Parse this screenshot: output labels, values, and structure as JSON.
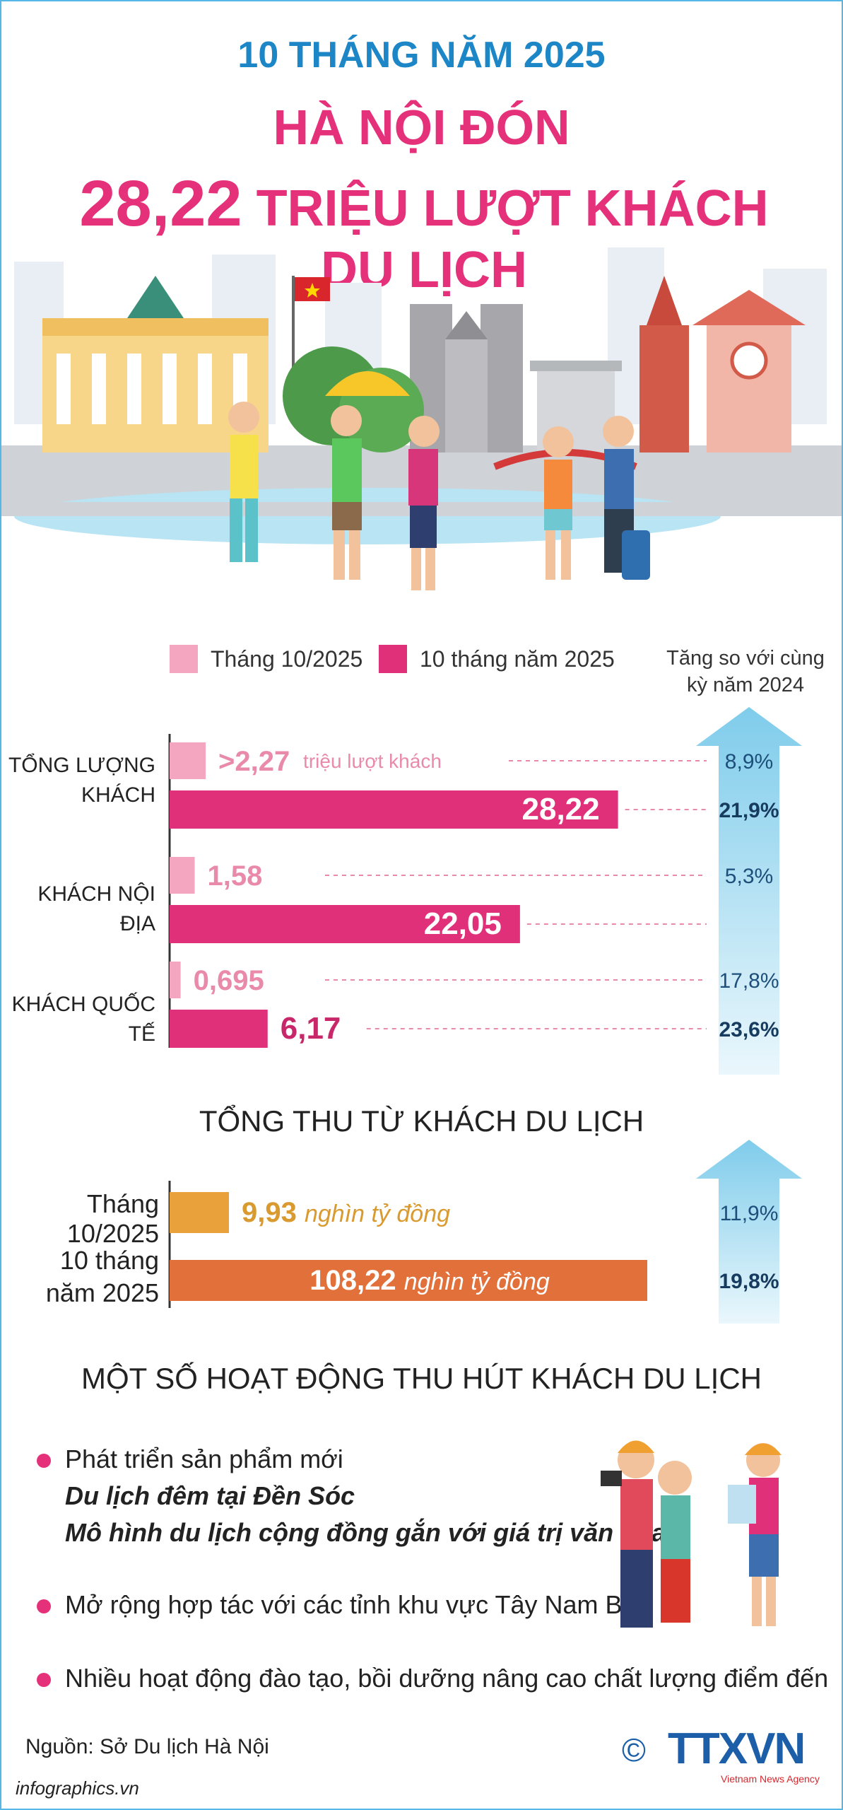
{
  "header": {
    "line1": "10 THÁNG NĂM 2025",
    "line2": "HÀ NỘI ĐÓN",
    "line3_number": "28,22",
    "line3_text": "TRIỆU LƯỢT KHÁCH DU LỊCH"
  },
  "colors": {
    "pink_light": "#f4a6c1",
    "pink_dark": "#e0307a",
    "orange_light": "#e9a23b",
    "orange_dark": "#e2703a",
    "blue_title": "#1c86c6",
    "arrow_blue": "#8fd3ee"
  },
  "visitors_chart": {
    "legend": [
      "Tháng 10/2025",
      "10 tháng năm 2025"
    ],
    "growth_header": "Tăng so với cùng kỳ năm 2024"
  },
  "chart_data": [
    {
      "type": "bar",
      "orientation": "horizontal",
      "categories": [
        "TỔNG LƯỢNG KHÁCH",
        "KHÁCH NỘI ĐỊA",
        "KHÁCH QUỐC TẾ"
      ],
      "series": [
        {
          "name": "Tháng 10/2025",
          "values": [
            2.27,
            1.58,
            0.695
          ],
          "labels": [
            ">2,27",
            "1,58",
            "0,695"
          ],
          "growth": [
            "8,9%",
            "5,3%",
            "17,8%"
          ]
        },
        {
          "name": "10 tháng năm 2025",
          "values": [
            28.22,
            22.05,
            6.17
          ],
          "labels": [
            "28,22",
            "22,05",
            "6,17"
          ],
          "growth": [
            "21,9%",
            "",
            "23,6%"
          ]
        }
      ],
      "unit_note": "triệu lượt khách",
      "xlim": [
        0,
        30
      ]
    },
    {
      "type": "bar",
      "orientation": "horizontal",
      "title": "TỔNG THU TỪ KHÁCH DU LỊCH",
      "categories": [
        "Tháng 10/2025",
        "10 tháng năm 2025"
      ],
      "values": [
        9.93,
        108.22
      ],
      "labels": [
        "9,93",
        "108,22"
      ],
      "unit": "nghìn tỷ đồng",
      "growth": [
        "11,9%",
        "19,8%"
      ],
      "xlim": [
        0,
        115
      ]
    }
  ],
  "revenue": {
    "cat1": "Tháng 10/2025",
    "cat2_line1": "10 tháng",
    "cat2_line2": "năm 2025"
  },
  "activities": {
    "title": "MỘT SỐ HOẠT ĐỘNG THU HÚT KHÁCH DU LỊCH",
    "items": [
      {
        "text": "Phát triển sản phẩm mới",
        "sub1": "Du lịch đêm tại Đền Sóc",
        "sub2": "Mô hình du lịch cộng đồng gắn với giá trị văn hóa"
      },
      {
        "text": "Mở rộng hợp tác với các tỉnh khu vực Tây Nam Bộ"
      },
      {
        "text": "Nhiều hoạt động đào tạo, bồi dưỡng nâng cao chất lượng điểm đến"
      }
    ]
  },
  "footer": {
    "source": "Nguồn: Sở Du lịch Hà Nội",
    "site": "infographics.vn",
    "copyright": "©",
    "logo": "TTXVN",
    "logo_sub": "Vietnam News Agency"
  }
}
